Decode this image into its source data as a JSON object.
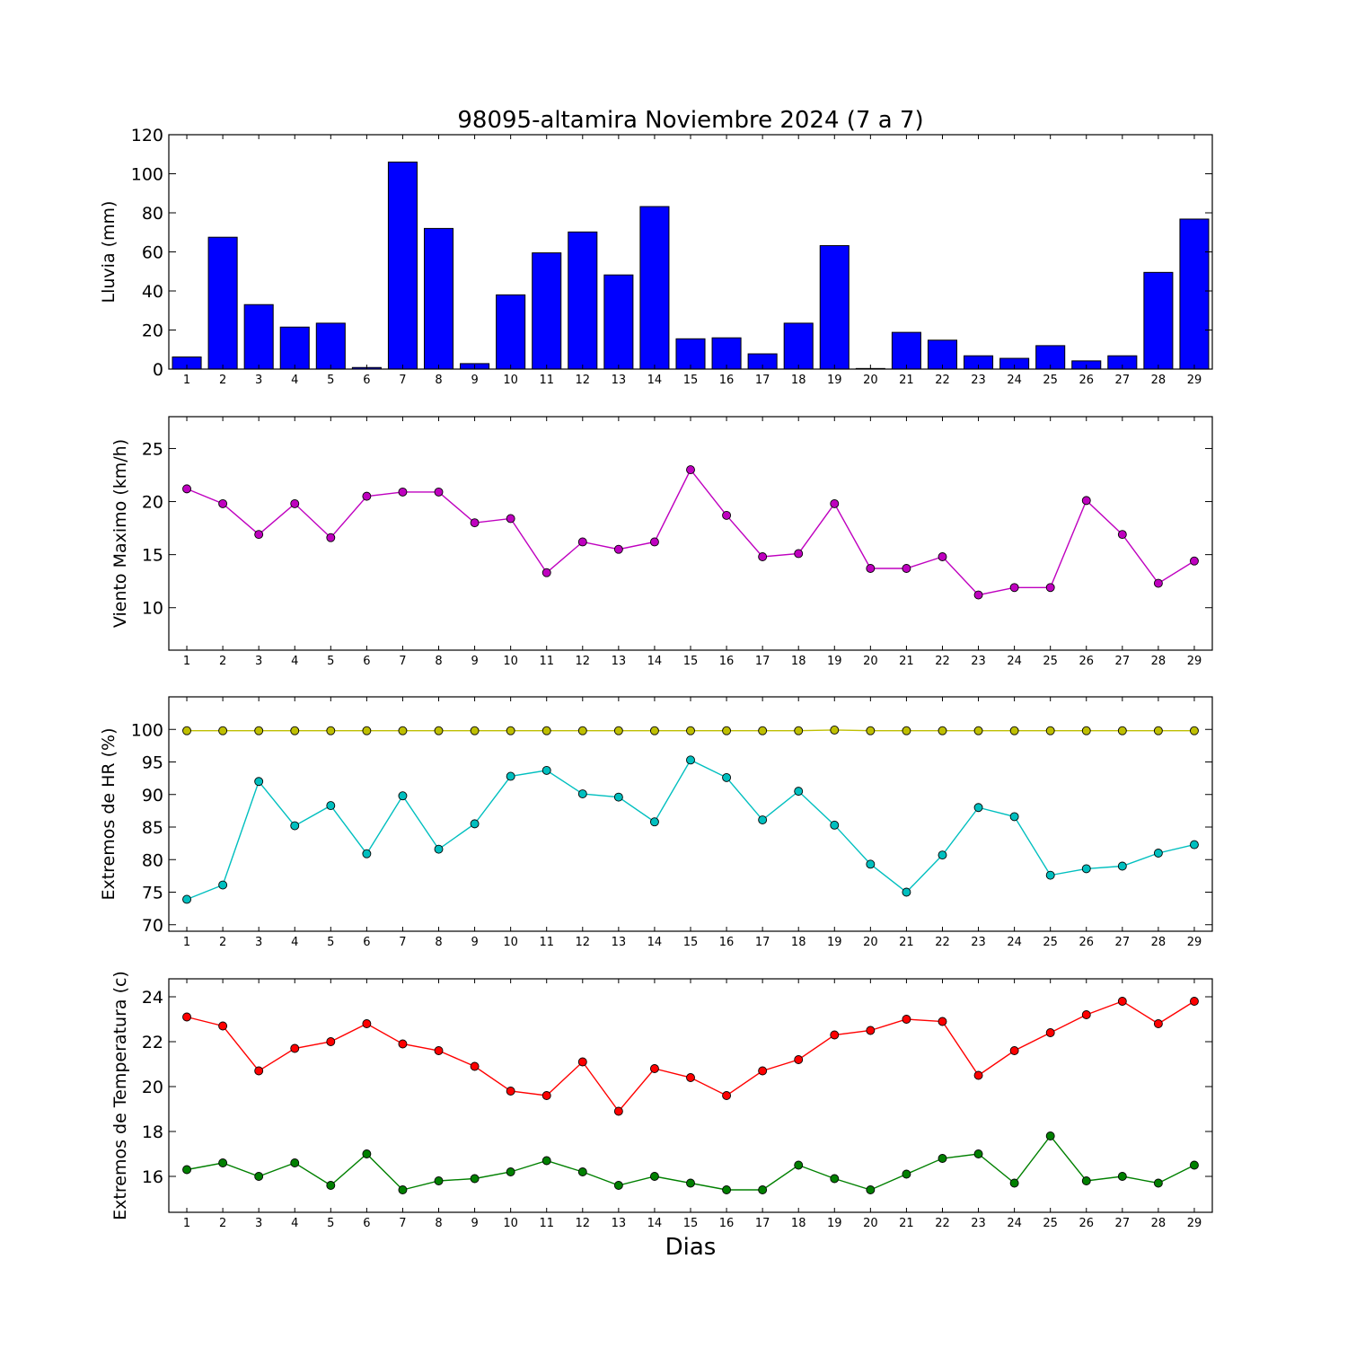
{
  "figure": {
    "title": "98095-altamira Noviembre 2024  (7 a 7)",
    "xlabel": "Dias"
  },
  "chart_data": [
    {
      "type": "bar",
      "ylabel": "Lluvia (mm)",
      "categories": [
        "1",
        "2",
        "3",
        "4",
        "5",
        "6",
        "7",
        "8",
        "9",
        "10",
        "11",
        "12",
        "13",
        "14",
        "15",
        "16",
        "17",
        "18",
        "19",
        "20",
        "21",
        "22",
        "23",
        "24",
        "25",
        "26",
        "27",
        "28",
        "29"
      ],
      "ylim": [
        0,
        120
      ],
      "yticks": [
        0,
        20,
        40,
        60,
        80,
        100,
        120
      ],
      "series": [
        {
          "color": "#0000ff",
          "values": [
            6.2,
            67.5,
            33.0,
            21.5,
            23.5,
            0.8,
            106.0,
            72.0,
            2.8,
            38.0,
            59.5,
            70.2,
            48.2,
            83.2,
            15.5,
            16.0,
            7.8,
            23.5,
            63.2,
            0.3,
            18.8,
            14.8,
            6.8,
            5.5,
            12.0,
            4.2,
            6.8,
            49.5,
            76.8
          ]
        }
      ]
    },
    {
      "type": "line",
      "ylabel": "Viento Maximo (km/h)",
      "x": [
        "1",
        "2",
        "3",
        "4",
        "5",
        "6",
        "7",
        "8",
        "9",
        "10",
        "11",
        "12",
        "13",
        "14",
        "15",
        "16",
        "17",
        "18",
        "19",
        "20",
        "21",
        "22",
        "23",
        "24",
        "25",
        "26",
        "27",
        "28",
        "29"
      ],
      "ylim": [
        6,
        28
      ],
      "yticks": [
        10,
        15,
        20,
        25
      ],
      "series": [
        {
          "color": "#bf00bf",
          "values": [
            21.2,
            19.8,
            16.9,
            19.8,
            16.6,
            20.5,
            20.9,
            20.9,
            18.0,
            18.4,
            13.3,
            16.2,
            15.5,
            16.2,
            23.0,
            18.7,
            14.8,
            15.1,
            19.8,
            13.7,
            13.7,
            14.8,
            11.2,
            11.9,
            11.9,
            20.1,
            16.9,
            12.3,
            14.4
          ]
        }
      ]
    },
    {
      "type": "line",
      "ylabel": "Extremos de HR (%)",
      "x": [
        "1",
        "2",
        "3",
        "4",
        "5",
        "6",
        "7",
        "8",
        "9",
        "10",
        "11",
        "12",
        "13",
        "14",
        "15",
        "16",
        "17",
        "18",
        "19",
        "20",
        "21",
        "22",
        "23",
        "24",
        "25",
        "26",
        "27",
        "28",
        "29"
      ],
      "ylim": [
        69,
        105
      ],
      "yticks": [
        70,
        75,
        80,
        85,
        90,
        95,
        100
      ],
      "series": [
        {
          "color": "#bfbf00",
          "values": [
            99.8,
            99.8,
            99.8,
            99.8,
            99.8,
            99.8,
            99.8,
            99.8,
            99.8,
            99.8,
            99.8,
            99.8,
            99.8,
            99.8,
            99.8,
            99.8,
            99.8,
            99.8,
            99.9,
            99.8,
            99.8,
            99.8,
            99.8,
            99.8,
            99.8,
            99.8,
            99.8,
            99.8,
            99.8
          ]
        },
        {
          "color": "#00bfbf",
          "values": [
            73.9,
            76.1,
            92.0,
            85.2,
            88.3,
            80.9,
            89.8,
            81.6,
            85.5,
            92.8,
            93.7,
            90.1,
            89.6,
            85.8,
            95.3,
            92.6,
            86.1,
            90.5,
            85.3,
            79.3,
            75.0,
            80.7,
            88.0,
            86.6,
            77.6,
            78.6,
            79.0,
            81.0,
            82.3
          ]
        }
      ]
    },
    {
      "type": "line",
      "ylabel": "Extremos de Temperatura (c)",
      "x": [
        "1",
        "2",
        "3",
        "4",
        "5",
        "6",
        "7",
        "8",
        "9",
        "10",
        "11",
        "12",
        "13",
        "14",
        "15",
        "16",
        "17",
        "18",
        "19",
        "20",
        "21",
        "22",
        "23",
        "24",
        "25",
        "26",
        "27",
        "28",
        "29"
      ],
      "ylim": [
        14.4,
        24.8
      ],
      "yticks": [
        16,
        18,
        20,
        22,
        24
      ],
      "series": [
        {
          "color": "#ff0000",
          "values": [
            23.1,
            22.7,
            20.7,
            21.7,
            22.0,
            22.8,
            21.9,
            21.6,
            20.9,
            19.8,
            19.6,
            21.1,
            18.9,
            20.8,
            20.4,
            19.6,
            20.7,
            21.2,
            22.3,
            22.5,
            23.0,
            22.9,
            20.5,
            21.6,
            22.4,
            23.2,
            23.8,
            22.8,
            23.8
          ]
        },
        {
          "color": "#008000",
          "values": [
            16.3,
            16.6,
            16.0,
            16.6,
            15.6,
            17.0,
            15.4,
            15.8,
            15.9,
            16.2,
            16.7,
            16.2,
            15.6,
            16.0,
            15.7,
            15.4,
            15.4,
            16.5,
            15.9,
            15.4,
            16.1,
            16.8,
            17.0,
            15.7,
            17.8,
            15.8,
            16.0,
            15.7,
            16.5
          ]
        }
      ]
    }
  ]
}
